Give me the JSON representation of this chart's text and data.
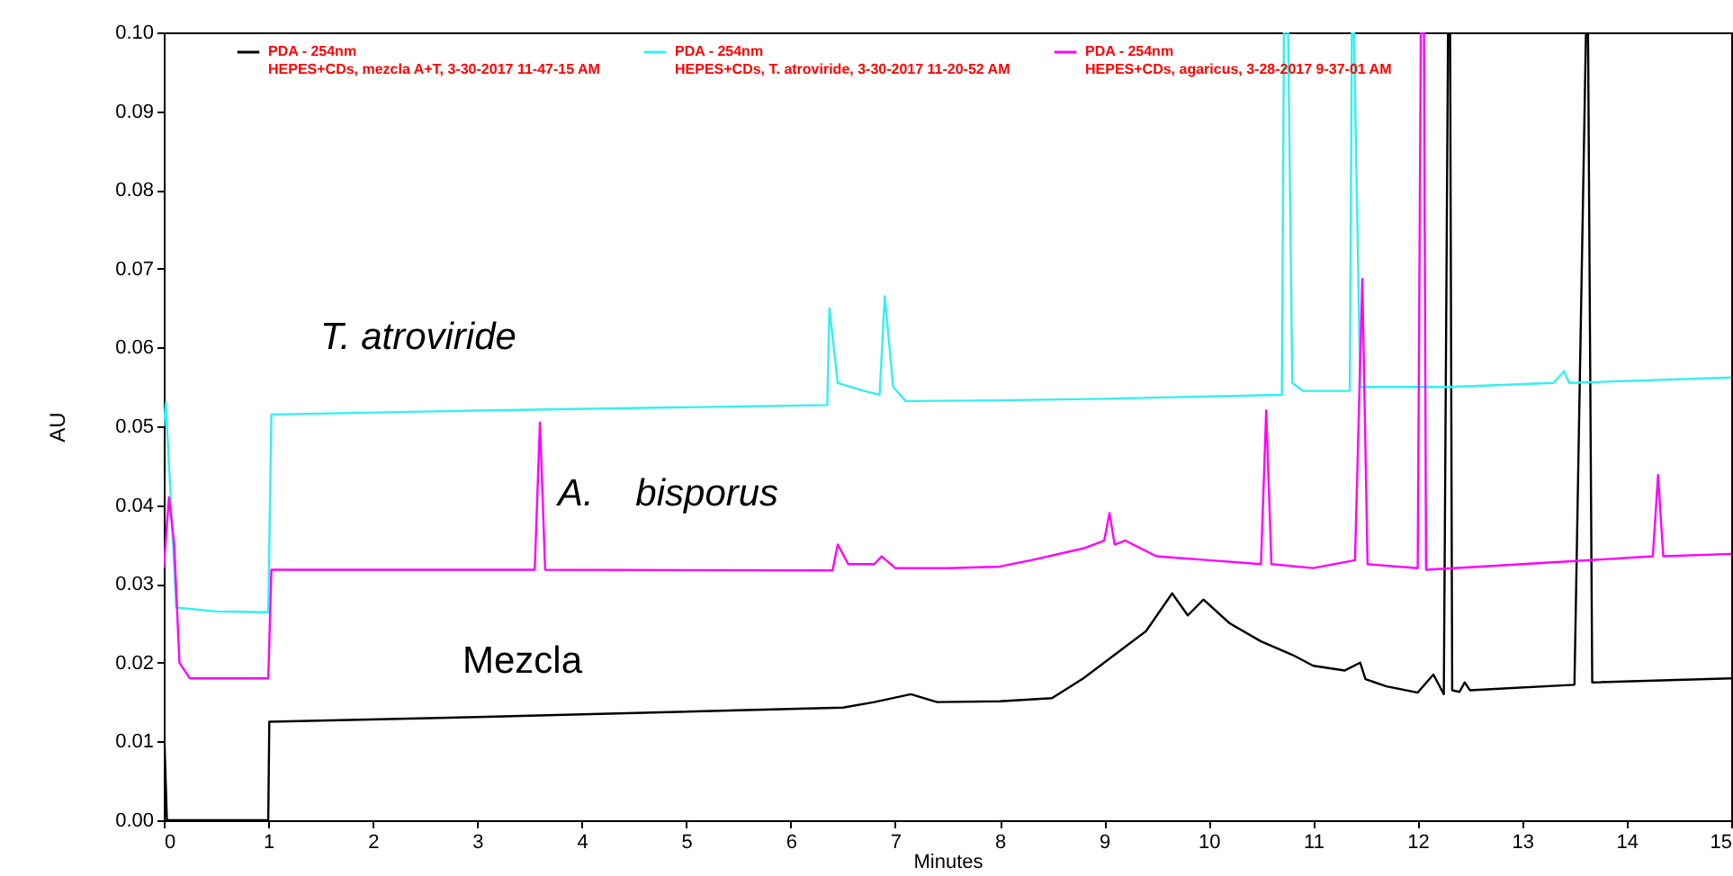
{
  "chart_data": {
    "type": "line",
    "xlabel": "Minutes",
    "ylabel": "AU",
    "xlim": [
      0,
      15
    ],
    "xticks": [
      0,
      1,
      2,
      3,
      4,
      5,
      6,
      7,
      8,
      9,
      10,
      11,
      12,
      13,
      14,
      15
    ],
    "ylim": [
      0,
      0.1
    ],
    "yticks": [
      {
        "value": 0,
        "label": "0.00"
      },
      {
        "value": 0.01,
        "label": "0.01"
      },
      {
        "value": 0.02,
        "label": "0.02"
      },
      {
        "value": 0.03,
        "label": "0.03"
      },
      {
        "value": 0.04,
        "label": "0.04"
      },
      {
        "value": 0.05,
        "label": "0.05"
      },
      {
        "value": 0.06,
        "label": "0.06"
      },
      {
        "value": 0.07,
        "label": "0.07"
      },
      {
        "value": 0.08,
        "label": "0.08"
      },
      {
        "value": 0.09,
        "label": "0.09"
      },
      {
        "value": 0.1,
        "label": "0.10"
      }
    ],
    "grid": false,
    "legend": "top",
    "marker": "none",
    "line_style": "solid",
    "annotations": [
      "T. atroviride",
      "A.    bisporus",
      "Mezcla"
    ],
    "series": [
      {
        "name": "PDA - 254nm\nHEPES+CDs, mezcla A+T, 3-30-2017 11-47-15 AM",
        "color": "#000000",
        "x": [
          0,
          0.03,
          1.0,
          1.01,
          3,
          6.5,
          6.8,
          7.15,
          7.4,
          8,
          8.5,
          8.8,
          9.1,
          9.4,
          9.65,
          9.8,
          9.95,
          10.2,
          10.5,
          10.8,
          11.0,
          11.3,
          11.45,
          11.5,
          11.7,
          12.0,
          12.15,
          12.25,
          12.29,
          12.31,
          12.33,
          12.4,
          12.45,
          12.5,
          13.5,
          13.61,
          13.63,
          13.67,
          13.7,
          15
        ],
        "values": [
          0.013,
          0,
          0,
          0.0125,
          0.0131,
          0.0143,
          0.015,
          0.016,
          0.015,
          0.0151,
          0.0155,
          0.018,
          0.021,
          0.024,
          0.0288,
          0.026,
          0.028,
          0.025,
          0.0227,
          0.021,
          0.0196,
          0.019,
          0.02,
          0.0179,
          0.017,
          0.0162,
          0.0185,
          0.016,
          0.1,
          0.1,
          0.0165,
          0.0163,
          0.0175,
          0.0165,
          0.0172,
          0.1,
          0.1,
          0.0175,
          0.0175,
          0.018
        ]
      },
      {
        "name": "PDA - 254nm\nHEPES+CDs, T. atroviride, 3-30-2017 11-20-52 AM",
        "color": "#33f0f0",
        "x": [
          0,
          0.02,
          0.12,
          0.5,
          1.0,
          1.03,
          3,
          6.35,
          6.37,
          6.45,
          6.7,
          6.85,
          6.9,
          6.98,
          7.1,
          8,
          9,
          10.7,
          10.72,
          10.76,
          10.8,
          10.9,
          11.35,
          11.37,
          11.39,
          11.45,
          12.3,
          13.3,
          13.4,
          13.45,
          15
        ],
        "values": [
          0.05,
          0.053,
          0.027,
          0.0265,
          0.0264,
          0.0515,
          0.052,
          0.0527,
          0.065,
          0.0555,
          0.0545,
          0.054,
          0.0665,
          0.055,
          0.0532,
          0.0533,
          0.0535,
          0.054,
          0.1,
          0.1,
          0.0555,
          0.0545,
          0.0545,
          0.1,
          0.1,
          0.055,
          0.055,
          0.0555,
          0.057,
          0.0555,
          0.0562
        ]
      },
      {
        "name": "PDA - 254nm\nHEPES+CDs, agaricus, 3-28-2017 9-37-01 AM",
        "color": "#ff00ff",
        "x": [
          0,
          0.05,
          0.1,
          0.15,
          0.25,
          1.0,
          1.03,
          3.55,
          3.6,
          3.65,
          6.4,
          6.45,
          6.55,
          6.8,
          6.87,
          7,
          7.5,
          8,
          8.3,
          8.8,
          9,
          9.05,
          9.1,
          9.2,
          9.5,
          10,
          10.5,
          10.55,
          10.6,
          11,
          11.4,
          11.47,
          11.52,
          12,
          12.03,
          12.06,
          12.08,
          13,
          14.25,
          14.3,
          14.35,
          15
        ],
        "values": [
          0.032,
          0.041,
          0.035,
          0.02,
          0.018,
          0.018,
          0.0318,
          0.0318,
          0.0505,
          0.0318,
          0.0317,
          0.035,
          0.0325,
          0.0325,
          0.0335,
          0.032,
          0.032,
          0.0322,
          0.033,
          0.0345,
          0.0355,
          0.039,
          0.035,
          0.0355,
          0.0335,
          0.033,
          0.0325,
          0.052,
          0.0325,
          0.032,
          0.033,
          0.0687,
          0.0325,
          0.032,
          0.1,
          0.1,
          0.0318,
          0.0325,
          0.0335,
          0.0438,
          0.0335,
          0.0338
        ]
      }
    ]
  }
}
